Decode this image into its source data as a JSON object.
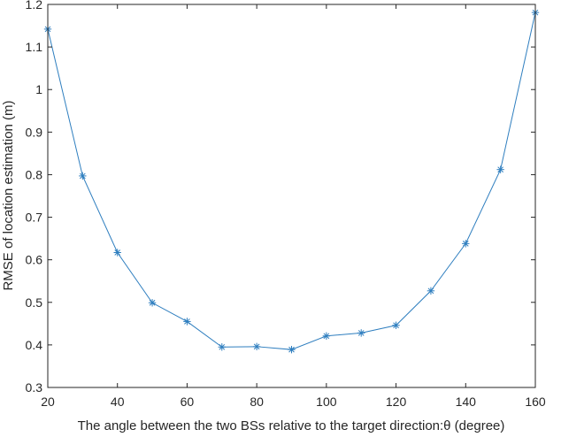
{
  "chart_data": {
    "type": "line",
    "title": "",
    "xlabel": "The angle between the two BSs relative to the target direction:θ (degree)",
    "ylabel": "RMSE of location estimation (m)",
    "xlim": [
      20,
      160
    ],
    "ylim": [
      0.3,
      1.2
    ],
    "xticks": [
      20,
      40,
      60,
      80,
      100,
      120,
      140,
      160
    ],
    "yticks": [
      0.3,
      0.4,
      0.5,
      0.6,
      0.7,
      0.8,
      0.9,
      1,
      1.1,
      1.2
    ],
    "grid": false,
    "marker": "asterisk",
    "series_color": "#2E7EBF",
    "axis_color": "#262626",
    "series": [
      {
        "x": [
          20,
          30,
          40,
          50,
          60,
          70,
          80,
          90,
          100,
          110,
          120,
          130,
          140,
          150,
          160
        ],
        "values": [
          1.142,
          0.797,
          0.617,
          0.499,
          0.455,
          0.395,
          0.396,
          0.389,
          0.421,
          0.428,
          0.446,
          0.527,
          0.638,
          0.812,
          1.181
        ]
      }
    ]
  }
}
